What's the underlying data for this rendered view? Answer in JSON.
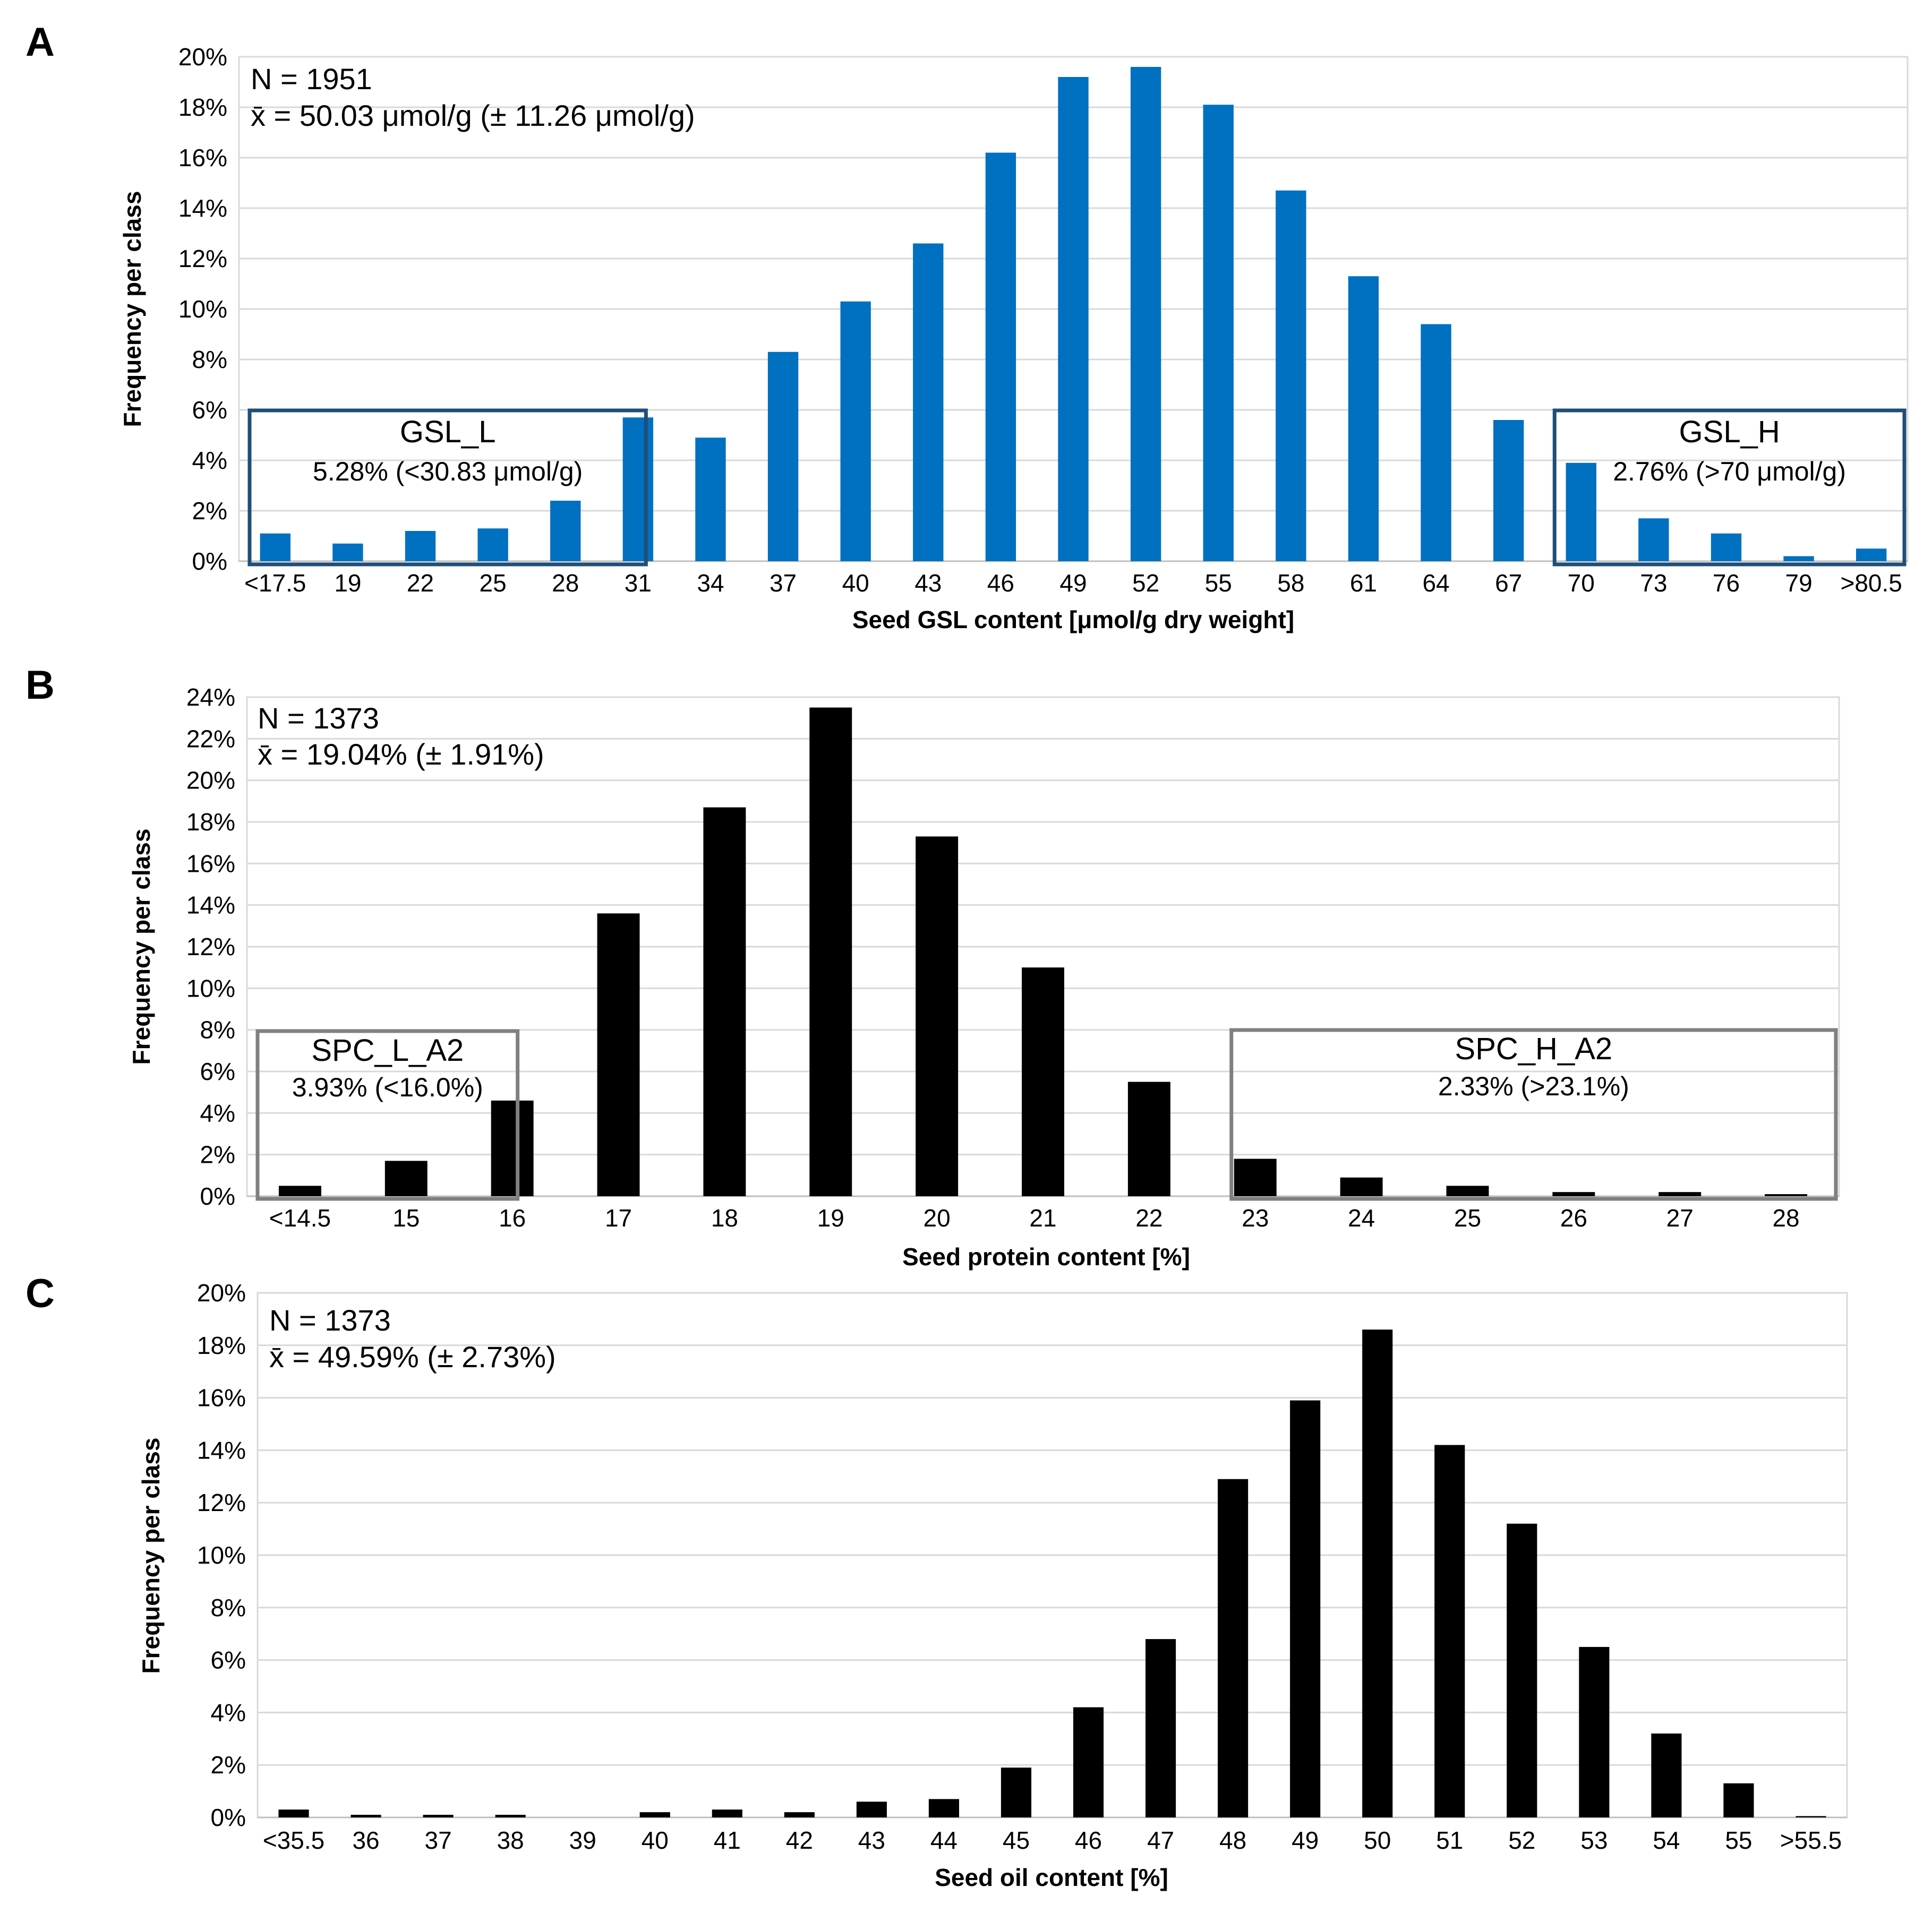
{
  "chart_data": [
    {
      "panel": "A",
      "type": "bar",
      "bar_color": "#0070c0",
      "box_color": "#1f4e79",
      "categories": [
        "<17.5",
        "19",
        "22",
        "25",
        "28",
        "31",
        "34",
        "37",
        "40",
        "43",
        "46",
        "49",
        "52",
        "55",
        "58",
        "61",
        "64",
        "67",
        "70",
        "73",
        "76",
        "79",
        ">80.5"
      ],
      "values": [
        1.1,
        0.7,
        1.2,
        1.3,
        2.4,
        5.7,
        4.9,
        8.3,
        10.3,
        12.6,
        16.2,
        19.2,
        19.6,
        18.1,
        14.7,
        11.3,
        9.4,
        5.6,
        3.9,
        1.7,
        1.1,
        0.2,
        0.5
      ],
      "ylim": [
        0,
        20
      ],
      "yticks": [
        0,
        2,
        4,
        6,
        8,
        10,
        12,
        14,
        16,
        18,
        20
      ],
      "ytick_labels": [
        "0%",
        "2%",
        "4%",
        "6%",
        "8%",
        "10%",
        "12%",
        "14%",
        "16%",
        "18%",
        "20%"
      ],
      "xlabel": "Seed GSL content [μmol/g dry weight]",
      "ylabel": "Frequency per class",
      "annotations": [
        "N = 1951",
        "x̄ = 50.03 μmol/g (± 11.26 μmol/g)"
      ],
      "boxes": [
        {
          "title": "GSL_L",
          "subtitle": "5.28% (<30.83 μmol/g)",
          "from": 0,
          "to": 5
        },
        {
          "title": "GSL_H",
          "subtitle": "2.76% (>70 μmol/g)",
          "from": 18,
          "to": 22
        }
      ]
    },
    {
      "panel": "B",
      "type": "bar",
      "bar_color": "#000000",
      "box_color": "#808080",
      "categories": [
        "<14.5",
        "15",
        "16",
        "17",
        "18",
        "19",
        "20",
        "21",
        "22",
        "23",
        "24",
        "25",
        "26",
        "27",
        "28"
      ],
      "values": [
        0.5,
        1.7,
        4.6,
        13.6,
        18.7,
        23.5,
        17.3,
        11.0,
        5.5,
        1.8,
        0.9,
        0.5,
        0.2,
        0.2,
        0.1
      ],
      "ylim": [
        0,
        24
      ],
      "yticks": [
        0,
        2,
        4,
        6,
        8,
        10,
        12,
        14,
        16,
        18,
        20,
        22,
        24
      ],
      "ytick_labels": [
        "0%",
        "2%",
        "4%",
        "6%",
        "8%",
        "10%",
        "12%",
        "14%",
        "16%",
        "18%",
        "20%",
        "22%",
        "24%"
      ],
      "xlabel": "Seed protein content [%]",
      "ylabel": "Frequency per class",
      "annotations": [
        "N = 1373",
        "x̄ = 19.04% (± 1.91%)"
      ],
      "boxes": [
        {
          "title": "SPC_L_A2",
          "subtitle": "3.93% (<16.0%)",
          "from": 0,
          "to": 2
        },
        {
          "title": "SPC_H_A2",
          "subtitle": "2.33% (>23.1%)",
          "from": 9,
          "to": 14
        }
      ]
    },
    {
      "panel": "C",
      "type": "bar",
      "bar_color": "#000000",
      "categories": [
        "<35.5",
        "36",
        "37",
        "38",
        "39",
        "40",
        "41",
        "42",
        "43",
        "44",
        "45",
        "46",
        "47",
        "48",
        "49",
        "50",
        "51",
        "52",
        "53",
        "54",
        "55",
        ">55.5"
      ],
      "values": [
        0.3,
        0.1,
        0.1,
        0.1,
        0.0,
        0.2,
        0.3,
        0.2,
        0.6,
        0.7,
        1.9,
        4.2,
        6.8,
        12.9,
        15.9,
        18.6,
        14.2,
        11.2,
        6.5,
        3.2,
        1.3,
        0.05
      ],
      "ylim": [
        0,
        20
      ],
      "yticks": [
        0,
        2,
        4,
        6,
        8,
        10,
        12,
        14,
        16,
        18,
        20
      ],
      "ytick_labels": [
        "0%",
        "2%",
        "4%",
        "6%",
        "8%",
        "10%",
        "12%",
        "14%",
        "16%",
        "18%",
        "20%"
      ],
      "xlabel": "Seed oil content [%]",
      "ylabel": "Frequency per class",
      "annotations": [
        "N = 1373",
        "x̄ = 49.59% (± 2.73%)"
      ],
      "boxes": []
    }
  ]
}
